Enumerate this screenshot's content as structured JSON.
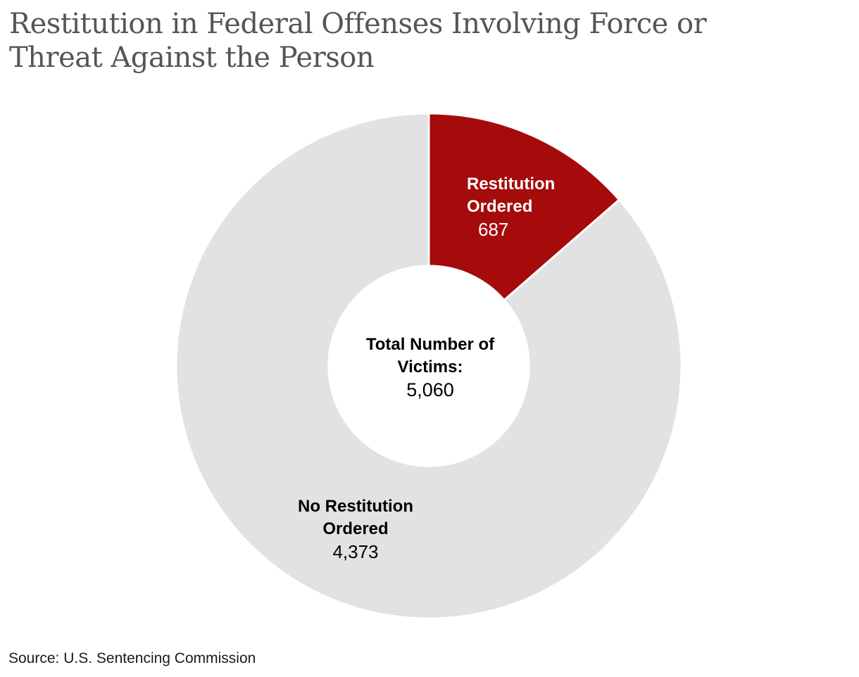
{
  "title": "Restitution in Federal Offenses Involving Force or\nThreat Against the Person",
  "source": "Source: U.S. Sentencing Commission",
  "colors": {
    "accent_red": "#A60B0B",
    "slice_gray": "#E2E2E2",
    "title_gray": "#54555A",
    "background": "#FFFFFF",
    "gap_white": "#FFFFFF"
  },
  "chart_data": {
    "type": "pie",
    "subtype": "donut",
    "title": "Restitution in Federal Offenses Involving Force or Threat Against the Person",
    "start_angle_deg": 0,
    "direction": "clockwise",
    "donut_hole_ratio": 0.396,
    "gap_color": "#FFFFFF",
    "gap_width": 3,
    "legend_position": "none",
    "total": 5060,
    "center_label": {
      "line1": "Total Number of",
      "line2": "Victims:",
      "value": 5060,
      "value_text": "5,060"
    },
    "slices": [
      {
        "label": "Restitution Ordered",
        "label_lines": [
          "Restitution",
          "Ordered"
        ],
        "value": 687,
        "value_text": "687",
        "percent": 13.6,
        "color": "#A60B0B",
        "text_color": "#FFFFFF"
      },
      {
        "label": "No Restitution Ordered",
        "label_lines": [
          "No Restitution",
          "Ordered"
        ],
        "value": 4373,
        "value_text": "4,373",
        "percent": 86.4,
        "color": "#E2E2E2",
        "text_color": "#000000"
      }
    ],
    "source": "Source: U.S. Sentencing Commission"
  }
}
